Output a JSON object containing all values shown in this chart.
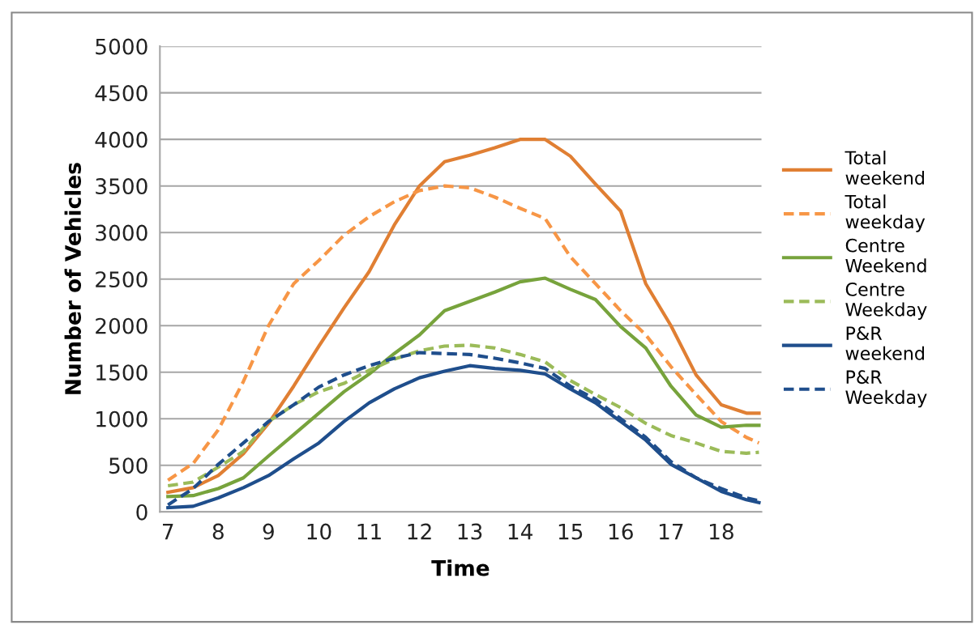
{
  "chart_data": {
    "type": "line",
    "xlabel": "Time",
    "ylabel": "Number of Vehicles",
    "x": [
      7,
      7.5,
      8,
      8.5,
      9,
      9.5,
      10,
      10.5,
      11,
      11.5,
      12,
      12.5,
      13,
      13.5,
      14,
      14.5,
      15,
      15.5,
      16,
      16.5,
      17,
      17.5,
      18,
      18.5,
      18.75
    ],
    "series": [
      {
        "name": "Total weekend",
        "color": "#e07f33",
        "line_style": "solid",
        "values": [
          210,
          260,
          390,
          625,
          950,
          1350,
          1780,
          2190,
          2580,
          3080,
          3500,
          3760,
          3830,
          3910,
          4000,
          4000,
          3820,
          3520,
          3230,
          2450,
          2000,
          1470,
          1150,
          1060,
          1060
        ]
      },
      {
        "name": "Total weekday",
        "color": "#f79646",
        "line_style": "dashed",
        "values": [
          340,
          520,
          880,
          1400,
          2000,
          2450,
          2700,
          2970,
          3170,
          3330,
          3450,
          3500,
          3480,
          3380,
          3260,
          3150,
          2740,
          2450,
          2160,
          1900,
          1560,
          1260,
          970,
          800,
          740
        ]
      },
      {
        "name": "Centre Weekend",
        "color": "#77a33c",
        "line_style": "solid",
        "values": [
          165,
          175,
          250,
          365,
          600,
          830,
          1060,
          1290,
          1480,
          1700,
          1900,
          2160,
          2260,
          2360,
          2470,
          2510,
          2390,
          2280,
          1990,
          1760,
          1350,
          1040,
          910,
          930,
          930
        ]
      },
      {
        "name": "Centre Weekday",
        "color": "#9bbb59",
        "line_style": "dashed",
        "values": [
          280,
          320,
          480,
          650,
          970,
          1150,
          1290,
          1380,
          1520,
          1640,
          1730,
          1780,
          1790,
          1760,
          1690,
          1610,
          1410,
          1260,
          1120,
          950,
          820,
          740,
          650,
          630,
          640
        ]
      },
      {
        "name": "P&R weekend",
        "color": "#1f4e8c",
        "line_style": "solid",
        "values": [
          45,
          60,
          150,
          260,
          390,
          570,
          740,
          970,
          1170,
          1320,
          1440,
          1510,
          1570,
          1540,
          1520,
          1480,
          1320,
          1170,
          970,
          770,
          510,
          365,
          220,
          130,
          100
        ]
      },
      {
        "name": "P&R Weekday",
        "color": "#1f4e8c",
        "line_style": "dashed",
        "values": [
          75,
          250,
          510,
          740,
          970,
          1150,
          1340,
          1470,
          1570,
          1650,
          1710,
          1700,
          1690,
          1650,
          1600,
          1540,
          1350,
          1210,
          1000,
          800,
          540,
          365,
          250,
          150,
          120
        ]
      }
    ],
    "xlim": [
      6.84,
      18.8
    ],
    "xticks": [
      7,
      8,
      9,
      10,
      11,
      12,
      13,
      14,
      15,
      16,
      17,
      18
    ],
    "ylim": [
      0,
      5000
    ],
    "yticks": [
      0,
      500,
      1000,
      1500,
      2000,
      2500,
      3000,
      3500,
      4000,
      4500,
      5000
    ],
    "grid": "y",
    "legend": "right",
    "marker": "none"
  }
}
